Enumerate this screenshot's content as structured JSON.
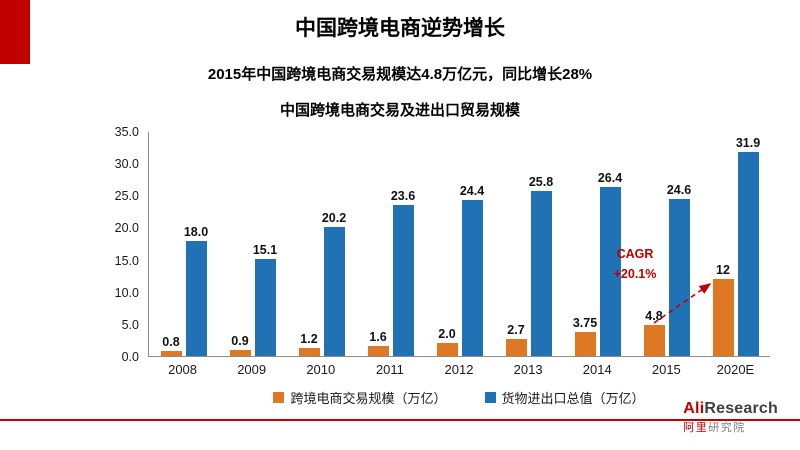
{
  "slide": {
    "title": "中国跨境电商逆势增长",
    "subtitle": "2015年中国跨境电商交易规模达4.8万亿元，同比增长28%"
  },
  "chart_data": {
    "type": "bar",
    "title": "中国跨境电商交易及进出口贸易规模",
    "categories": [
      "2008",
      "2009",
      "2010",
      "2011",
      "2012",
      "2013",
      "2014",
      "2015",
      "2020E"
    ],
    "series": [
      {
        "name": "跨境电商交易规模（万亿）",
        "color": "#DE7825",
        "values": [
          0.8,
          0.9,
          1.2,
          1.6,
          2.0,
          2.7,
          3.75,
          4.8,
          12
        ],
        "labels": [
          "0.8",
          "0.9",
          "1.2",
          "1.6",
          "2.0",
          "2.7",
          "3.75",
          "4.8",
          "12"
        ]
      },
      {
        "name": "货物进出口总值（万亿）",
        "color": "#2172B5",
        "values": [
          18.0,
          15.1,
          20.2,
          23.6,
          24.4,
          25.8,
          26.4,
          24.6,
          31.9
        ],
        "labels": [
          "18.0",
          "15.1",
          "20.2",
          "23.6",
          "24.4",
          "25.8",
          "26.4",
          "24.6",
          "31.9"
        ]
      }
    ],
    "xlabel": "",
    "ylabel": "",
    "ylim": [
      0,
      35
    ],
    "yticks": [
      "0.0",
      "5.0",
      "10.0",
      "15.0",
      "20.0",
      "25.0",
      "30.0",
      "35.0"
    ],
    "grid": false,
    "legend_position": "bottom",
    "annotation": {
      "lines": [
        "CAGR",
        "+20.1%"
      ],
      "color": "#C00000"
    }
  },
  "footer": {
    "accent_color": "#C00000",
    "logo_ali": "Ali",
    "logo_research": "Research",
    "logo_cn_red": "阿里",
    "logo_cn_gray": "研究院"
  }
}
